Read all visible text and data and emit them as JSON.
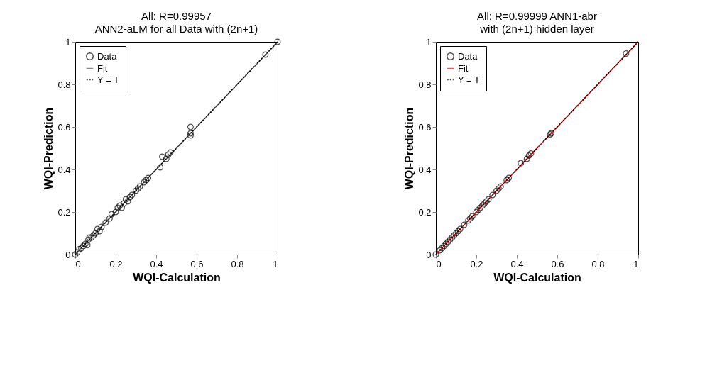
{
  "chart_data": [
    {
      "type": "scatter",
      "title": "All: R=0.99957",
      "subtitle": "ANN2-aLM for all Data  with (2n+1)",
      "xlabel": "WQI-Calculation",
      "ylabel": "WQI-Prediction",
      "xlim": [
        0,
        1
      ],
      "ylim": [
        0,
        1
      ],
      "xticks": [
        0,
        0.2,
        0.4,
        0.6,
        0.8,
        1
      ],
      "yticks": [
        0,
        0.2,
        0.4,
        0.6,
        0.8,
        1
      ],
      "grid": false,
      "legend": "top left",
      "series": [
        {
          "name": "Data",
          "marker": "circle",
          "color": "#000000",
          "x": [
            0,
            0.01,
            0.02,
            0.03,
            0.04,
            0.05,
            0.06,
            0.065,
            0.07,
            0.08,
            0.09,
            0.1,
            0.11,
            0.12,
            0.13,
            0.15,
            0.17,
            0.18,
            0.2,
            0.21,
            0.22,
            0.23,
            0.24,
            0.25,
            0.26,
            0.27,
            0.28,
            0.3,
            0.31,
            0.32,
            0.34,
            0.35,
            0.36,
            0.42,
            0.43,
            0.45,
            0.46,
            0.47,
            0.57,
            0.57,
            0.57,
            0.94,
            1.0
          ],
          "values": [
            0,
            0.01,
            0.025,
            0.03,
            0.04,
            0.05,
            0.045,
            0.07,
            0.08,
            0.08,
            0.09,
            0.1,
            0.12,
            0.11,
            0.13,
            0.15,
            0.17,
            0.19,
            0.2,
            0.22,
            0.23,
            0.22,
            0.24,
            0.26,
            0.25,
            0.27,
            0.28,
            0.3,
            0.31,
            0.32,
            0.34,
            0.35,
            0.36,
            0.41,
            0.46,
            0.45,
            0.47,
            0.48,
            0.56,
            0.57,
            0.6,
            0.94,
            1.0
          ]
        },
        {
          "name": "Fit",
          "type": "line",
          "color": "#555555",
          "line_style": "solid",
          "x": [
            0,
            1
          ],
          "values": [
            0.002,
            0.998
          ]
        },
        {
          "name": "Y = T",
          "type": "line",
          "color": "#000000",
          "line_style": "dotted",
          "x": [
            0,
            1
          ],
          "values": [
            0,
            1
          ]
        }
      ]
    },
    {
      "type": "scatter",
      "title": "All: R=0.99999 ANN1-abr",
      "subtitle": "with (2n+1) hidden layer",
      "xlabel": "WQI-Calculation",
      "ylabel": "WQI-Prediction",
      "xlim": [
        0,
        1
      ],
      "ylim": [
        0,
        1
      ],
      "xticks": [
        0,
        0.2,
        0.4,
        0.6,
        0.8,
        1
      ],
      "yticks": [
        0,
        0.2,
        0.4,
        0.6,
        0.8,
        1
      ],
      "grid": false,
      "legend": "top left",
      "series": [
        {
          "name": "Data",
          "marker": "circle",
          "color": "#000000",
          "x": [
            0,
            0.02,
            0.03,
            0.04,
            0.05,
            0.06,
            0.07,
            0.08,
            0.09,
            0.1,
            0.11,
            0.12,
            0.14,
            0.16,
            0.17,
            0.18,
            0.2,
            0.21,
            0.22,
            0.23,
            0.24,
            0.25,
            0.26,
            0.28,
            0.3,
            0.31,
            0.32,
            0.35,
            0.36,
            0.42,
            0.45,
            0.46,
            0.47,
            0.565,
            0.57,
            0.94
          ],
          "values": [
            0,
            0.02,
            0.03,
            0.04,
            0.05,
            0.06,
            0.07,
            0.08,
            0.09,
            0.1,
            0.11,
            0.12,
            0.14,
            0.16,
            0.17,
            0.18,
            0.2,
            0.21,
            0.22,
            0.23,
            0.24,
            0.25,
            0.26,
            0.28,
            0.3,
            0.31,
            0.32,
            0.35,
            0.36,
            0.43,
            0.45,
            0.465,
            0.475,
            0.565,
            0.57,
            0.945
          ]
        },
        {
          "name": "Fit",
          "type": "line",
          "color": "#ff0000",
          "line_style": "solid",
          "x": [
            0,
            1
          ],
          "values": [
            0,
            1
          ]
        },
        {
          "name": "Y = T",
          "type": "line",
          "color": "#000000",
          "line_style": "dotted",
          "x": [
            0,
            1
          ],
          "values": [
            0,
            1
          ]
        }
      ]
    }
  ]
}
